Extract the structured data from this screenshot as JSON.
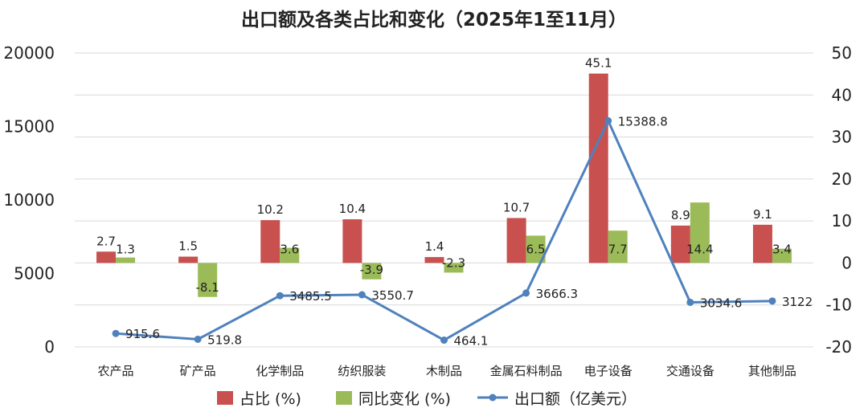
{
  "chart_data": {
    "type": "bar",
    "title": "出口额及各类占比和变化（2025年1至11月）",
    "categories": [
      "农产品",
      "矿产品",
      "化学制品",
      "纺织服装",
      "木制品",
      "金属石料制品",
      "电子设备",
      "交通设备",
      "其他制品"
    ],
    "series": [
      {
        "name": "占比 (%)",
        "type": "bar",
        "axis": "right",
        "color": "#c8504f",
        "values": [
          2.7,
          1.5,
          10.2,
          10.4,
          1.4,
          10.7,
          45.1,
          8.9,
          9.1
        ],
        "labels": [
          "2.7",
          "1.5",
          "10.2",
          "10.4",
          "1.4",
          "10.7",
          "45.1",
          "8.9",
          "9.1"
        ]
      },
      {
        "name": "同比变化 (%)",
        "type": "bar",
        "axis": "right",
        "color": "#9bbb59",
        "values": [
          1.3,
          -8.1,
          3.6,
          -3.9,
          -2.3,
          6.5,
          7.7,
          14.4,
          3.4
        ],
        "labels": [
          "1.3",
          "-8.1",
          "3.6",
          "-3.9",
          "-2.3",
          "6.5",
          "7.7",
          "14.4",
          "3.4"
        ]
      },
      {
        "name": "出口额（亿美元）",
        "type": "line",
        "axis": "left",
        "color": "#4f81bd",
        "values": [
          915.6,
          519.8,
          3485.5,
          3550.7,
          464.1,
          3666.3,
          15388.8,
          3034.6,
          3122
        ],
        "labels": [
          "915.6",
          "519.8",
          "3485.5",
          "3550.7",
          "464.1",
          "3666.3",
          "15388.8",
          "3034.6",
          "3122"
        ]
      }
    ],
    "y_left": {
      "ylim": [
        0,
        20000
      ],
      "ticks": [
        "0",
        "5000",
        "10000",
        "15000",
        "20000"
      ]
    },
    "y_right": {
      "ylim": [
        -20,
        50
      ],
      "ticks": [
        "-20",
        "-10",
        "0",
        "10",
        "20",
        "30",
        "40",
        "50"
      ]
    },
    "grid": true,
    "legend": "bottom"
  }
}
